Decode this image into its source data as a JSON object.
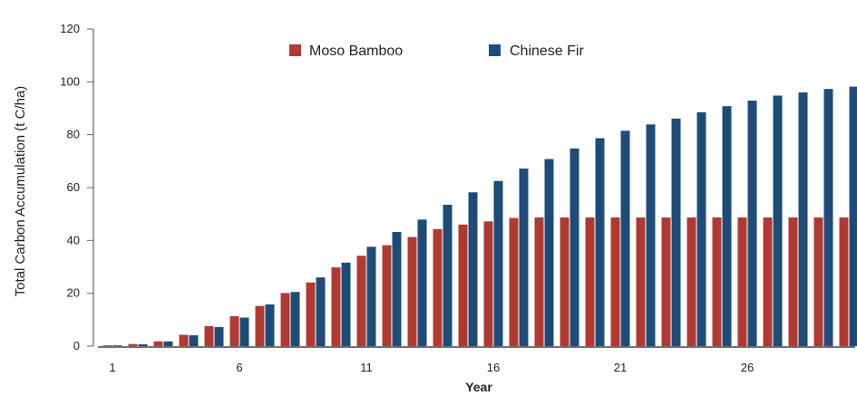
{
  "chart_data": {
    "type": "bar",
    "title": "",
    "xlabel": "Year",
    "ylabel": "Total Carbon Accumulation (t C/ha)",
    "ylim": [
      0,
      120
    ],
    "yticks": [
      "0",
      "20",
      "40",
      "60",
      "80",
      "100",
      "120"
    ],
    "xticks": [
      "1",
      "6",
      "11",
      "16",
      "21",
      "26"
    ],
    "legend_position": "top-center",
    "grid": false,
    "categories": [
      1,
      2,
      3,
      4,
      5,
      6,
      7,
      8,
      9,
      10,
      11,
      12,
      13,
      14,
      15,
      16,
      17,
      18,
      19,
      20,
      21,
      22,
      23,
      24,
      25,
      26,
      27,
      28,
      29,
      30
    ],
    "series": [
      {
        "name": "Moso Bamboo",
        "color": "#b03a32",
        "values": [
          0.3,
          0.8,
          1.8,
          4.3,
          7.6,
          11.3,
          15.2,
          20.1,
          24.1,
          29.8,
          34.2,
          38.2,
          41.3,
          44.3,
          46.0,
          47.2,
          48.5,
          48.7,
          48.7,
          48.7,
          48.7,
          48.7,
          48.7,
          48.7,
          48.7,
          48.7,
          48.7,
          48.7,
          48.7,
          48.7
        ]
      },
      {
        "name": "Chinese Fir",
        "color": "#1e4c79",
        "values": [
          0.3,
          0.7,
          1.8,
          4.1,
          7.2,
          10.8,
          15.8,
          20.5,
          26.0,
          31.6,
          37.6,
          43.2,
          47.9,
          53.5,
          58.2,
          62.5,
          67.2,
          70.8,
          74.8,
          78.7,
          81.5,
          83.9,
          86.1,
          88.5,
          90.8,
          92.9,
          94.8,
          96.0,
          97.3,
          98.2
        ]
      }
    ]
  }
}
